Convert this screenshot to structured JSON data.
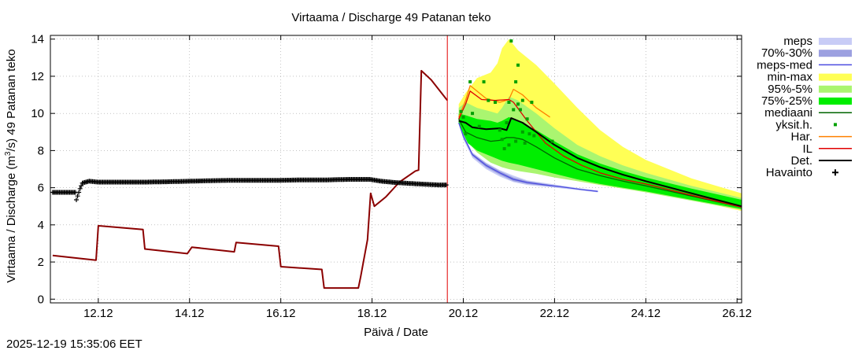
{
  "chart_data": {
    "type": "line",
    "title": "Virtaama / Discharge  49  Patanan teko",
    "xlabel": "Päivä / Date",
    "ylabel": "Virtaama / Discharge (m³/s)  49  Patanan teko",
    "ylabel_parts": [
      "Virtaama / Discharge (m",
      "3",
      "/s)  49  Patanan teko"
    ],
    "x_unit": "day of December 2025",
    "xlim": [
      10.95,
      26.1
    ],
    "ylim": [
      -0.2,
      14.2
    ],
    "x_ticks": [
      12,
      14,
      16,
      18,
      20,
      22,
      24,
      26
    ],
    "x_tick_labels": [
      "12.12",
      "14.12",
      "16.12",
      "18.12",
      "20.12",
      "22.12",
      "24.12",
      "26.12"
    ],
    "y_ticks": [
      0,
      2,
      4,
      6,
      8,
      10,
      12,
      14
    ],
    "y_tick_labels": [
      "0",
      "2",
      "4",
      "6",
      "8",
      "10",
      "12",
      "14"
    ],
    "grid": true,
    "forecast_start": 19.65,
    "legend_position": "right",
    "legend": [
      {
        "label": "meps",
        "kind": "band",
        "color": "#c8ccf6"
      },
      {
        "label": "70%-30%",
        "kind": "band",
        "color": "#9ca0e0"
      },
      {
        "label": "meps-med",
        "kind": "line",
        "color": "#4c4ce0"
      },
      {
        "label": "min-max",
        "kind": "band",
        "color": "#ffff55"
      },
      {
        "label": "95%-5%",
        "kind": "band",
        "color": "#aaf570"
      },
      {
        "label": "75%-25%",
        "kind": "band",
        "color": "#00ee00"
      },
      {
        "label": "mediaani",
        "kind": "line",
        "color": "#006400"
      },
      {
        "label": "yksit.h.",
        "kind": "dot",
        "color": "#00a000"
      },
      {
        "label": "Har.",
        "kind": "line",
        "color": "#ff8000"
      },
      {
        "label": "IL",
        "kind": "line",
        "color": "#e00000"
      },
      {
        "label": "Det.",
        "kind": "line",
        "color": "#000000"
      },
      {
        "label": "Havainto",
        "kind": "plus",
        "color": "#000000"
      }
    ],
    "series": [
      {
        "name": "min-max",
        "kind": "band",
        "color": "#ffff55",
        "x": [
          19.9,
          20.05,
          20.3,
          20.6,
          20.75,
          20.85,
          21.0,
          21.2,
          21.6,
          22.0,
          22.5,
          23.0,
          23.5,
          24.0,
          25.0,
          26.1
        ],
        "upper": [
          10.5,
          11.1,
          11.9,
          12.2,
          12.7,
          13.5,
          14.0,
          13.4,
          12.6,
          11.6,
          10.3,
          9.1,
          8.2,
          7.5,
          6.5,
          5.7
        ],
        "lower": [
          9.5,
          8.9,
          8.0,
          7.45,
          7.3,
          7.2,
          7.1,
          7.0,
          6.8,
          6.6,
          6.35,
          6.15,
          5.95,
          5.8,
          5.35,
          4.75
        ]
      },
      {
        "name": "95%-5%",
        "kind": "band",
        "color": "#aaf570",
        "x": [
          19.9,
          20.05,
          20.3,
          20.6,
          20.75,
          20.85,
          21.0,
          21.2,
          21.6,
          22.0,
          22.5,
          23.0,
          23.5,
          24.0,
          25.0,
          26.1
        ],
        "upper": [
          10.3,
          10.6,
          10.3,
          10.1,
          10.0,
          10.3,
          10.9,
          10.7,
          10.0,
          9.2,
          8.3,
          7.7,
          7.2,
          6.8,
          6.1,
          5.45
        ],
        "lower": [
          9.5,
          8.6,
          7.9,
          7.35,
          7.2,
          7.1,
          7.0,
          6.9,
          6.75,
          6.55,
          6.35,
          6.15,
          5.95,
          5.75,
          5.3,
          4.8
        ]
      },
      {
        "name": "75%-25%",
        "kind": "band",
        "color": "#00ee00",
        "x": [
          19.9,
          20.05,
          20.3,
          20.6,
          20.75,
          20.85,
          21.0,
          21.2,
          21.6,
          22.0,
          22.5,
          23.0,
          23.5,
          24.0,
          25.0,
          26.1
        ],
        "upper": [
          10.0,
          9.9,
          9.7,
          9.6,
          9.5,
          9.6,
          9.8,
          9.6,
          9.1,
          8.5,
          7.8,
          7.3,
          6.9,
          6.55,
          5.95,
          5.35
        ],
        "lower": [
          9.5,
          8.5,
          8.0,
          7.7,
          7.55,
          7.45,
          7.35,
          7.25,
          7.0,
          6.75,
          6.45,
          6.2,
          6.0,
          5.8,
          5.35,
          4.85
        ]
      },
      {
        "name": "meps",
        "kind": "band",
        "color": "#c8ccf6",
        "x": [
          19.9,
          20.0,
          20.2,
          20.5,
          20.8,
          21.1,
          21.4,
          21.8,
          22.2,
          22.6,
          22.95
        ],
        "upper": [
          9.5,
          8.9,
          7.9,
          7.35,
          6.95,
          6.65,
          6.4,
          6.25,
          6.1,
          5.95,
          5.85
        ],
        "lower": [
          9.5,
          8.6,
          7.6,
          7.0,
          6.6,
          6.3,
          6.15,
          6.05,
          5.95,
          5.85,
          5.75
        ]
      },
      {
        "name": "70%-30%",
        "kind": "band",
        "color": "#9ca0e0",
        "x": [
          19.9,
          20.0,
          20.2,
          20.5,
          20.8,
          21.1,
          21.4,
          21.8,
          22.2,
          22.6,
          22.95
        ],
        "upper": [
          9.5,
          8.85,
          7.85,
          7.3,
          6.9,
          6.55,
          6.35,
          6.2,
          6.05,
          5.9,
          5.8
        ],
        "lower": [
          9.5,
          8.7,
          7.7,
          7.1,
          6.7,
          6.35,
          6.2,
          6.1,
          6.0,
          5.9,
          5.8
        ]
      },
      {
        "name": "meps-med",
        "kind": "line",
        "color": "#4c4ce0",
        "x": [
          19.9,
          20.0,
          20.2,
          20.5,
          20.8,
          21.1,
          21.4,
          21.8,
          22.2,
          22.6,
          22.95
        ],
        "y": [
          9.5,
          8.78,
          7.78,
          7.2,
          6.8,
          6.45,
          6.28,
          6.15,
          6.03,
          5.9,
          5.8
        ]
      },
      {
        "name": "mediaani",
        "kind": "line",
        "color": "#006400",
        "x": [
          19.9,
          20.05,
          20.3,
          20.6,
          20.8,
          20.95,
          21.1,
          21.3,
          21.6,
          22.0,
          22.5,
          23.0,
          23.5,
          24.0,
          25.0,
          26.1
        ],
        "y": [
          9.7,
          9.0,
          8.7,
          8.5,
          8.55,
          8.7,
          8.7,
          8.6,
          8.2,
          7.6,
          7.0,
          6.65,
          6.35,
          6.1,
          5.55,
          4.95
        ]
      },
      {
        "name": "Har.",
        "kind": "line",
        "color": "#ff8000",
        "x": [
          19.9,
          20.05,
          20.15,
          20.5,
          20.8,
          21.0,
          21.1,
          21.3,
          21.6,
          21.9
        ],
        "y": [
          9.8,
          10.7,
          11.5,
          10.8,
          10.6,
          10.75,
          11.3,
          11.0,
          10.3,
          9.8
        ]
      },
      {
        "name": "IL",
        "kind": "line",
        "color": "#e00000",
        "x": [
          19.9,
          20.05,
          20.15,
          20.4,
          20.7,
          21.0,
          21.1,
          21.4,
          21.8,
          22.2,
          22.6,
          23.0,
          23.5,
          24.0,
          25.0,
          26.1
        ],
        "y": [
          9.7,
          10.5,
          11.2,
          10.75,
          10.7,
          10.75,
          10.6,
          9.6,
          8.4,
          7.7,
          7.2,
          6.8,
          6.45,
          6.2,
          5.6,
          4.95
        ]
      },
      {
        "name": "Det.",
        "kind": "line",
        "color": "#000000",
        "x": [
          19.9,
          20.05,
          20.2,
          20.5,
          20.8,
          20.95,
          21.05,
          21.3,
          21.6,
          22.0,
          22.5,
          23.0,
          23.5,
          24.0,
          25.0,
          26.1
        ],
        "y": [
          9.6,
          9.5,
          9.25,
          9.15,
          9.2,
          9.1,
          9.75,
          9.5,
          9.0,
          8.3,
          7.6,
          7.1,
          6.7,
          6.35,
          5.7,
          5.0
        ]
      },
      {
        "name": "Det. (history)",
        "kind": "line",
        "color": "#8b0000",
        "x": [
          11.0,
          11.95,
          12.0,
          12.98,
          13.02,
          13.95,
          14.05,
          14.98,
          15.02,
          15.95,
          16.0,
          16.9,
          16.95,
          17.7,
          17.75,
          17.9,
          17.97,
          18.05,
          18.3,
          18.6,
          18.95,
          19.02,
          19.08,
          19.3,
          19.65
        ],
        "y": [
          2.35,
          2.1,
          3.95,
          3.75,
          2.7,
          2.45,
          2.8,
          2.55,
          3.05,
          2.85,
          1.75,
          1.6,
          0.6,
          0.6,
          1.2,
          3.2,
          5.7,
          5.0,
          5.5,
          6.3,
          6.9,
          6.95,
          12.3,
          11.8,
          10.7
        ]
      },
      {
        "name": "Havainto",
        "kind": "points",
        "color": "#000000",
        "x": [
          11.0,
          11.25,
          11.5,
          11.52,
          11.6,
          11.65,
          11.8,
          12.0,
          12.5,
          13.0,
          13.5,
          14.0,
          14.5,
          15.0,
          15.5,
          16.0,
          16.5,
          17.0,
          17.5,
          17.95,
          18.2,
          18.5,
          18.9,
          19.2,
          19.45,
          19.65
        ],
        "y": [
          5.75,
          5.75,
          5.75,
          5.35,
          5.95,
          6.25,
          6.35,
          6.3,
          6.3,
          6.3,
          6.32,
          6.35,
          6.38,
          6.4,
          6.4,
          6.4,
          6.42,
          6.42,
          6.45,
          6.45,
          6.35,
          6.28,
          6.22,
          6.18,
          6.15,
          6.15
        ]
      },
      {
        "name": "yksit.h.",
        "kind": "dots",
        "color": "#00a000",
        "x": [
          19.95,
          20.0,
          20.05,
          20.15,
          20.2,
          20.35,
          20.45,
          20.55,
          20.7,
          20.8,
          20.85,
          20.9,
          20.95,
          21.0,
          21.0,
          21.05,
          21.1,
          21.15,
          21.15,
          21.2,
          21.2,
          21.25,
          21.3,
          21.3,
          21.35,
          21.4,
          21.45,
          21.5,
          21.55,
          21.95
        ],
        "y": [
          10.1,
          9.8,
          8.9,
          11.7,
          10.0,
          9.3,
          11.7,
          10.7,
          10.6,
          9.1,
          8.6,
          8.1,
          9.5,
          10.6,
          8.3,
          13.9,
          10.2,
          11.7,
          8.5,
          12.6,
          10.5,
          10.2,
          9.0,
          10.7,
          8.4,
          9.7,
          8.9,
          10.6,
          8.8,
          8.5
        ]
      }
    ]
  },
  "footer": {
    "timestamp": "2025-12-19 15:35:06 EET"
  }
}
